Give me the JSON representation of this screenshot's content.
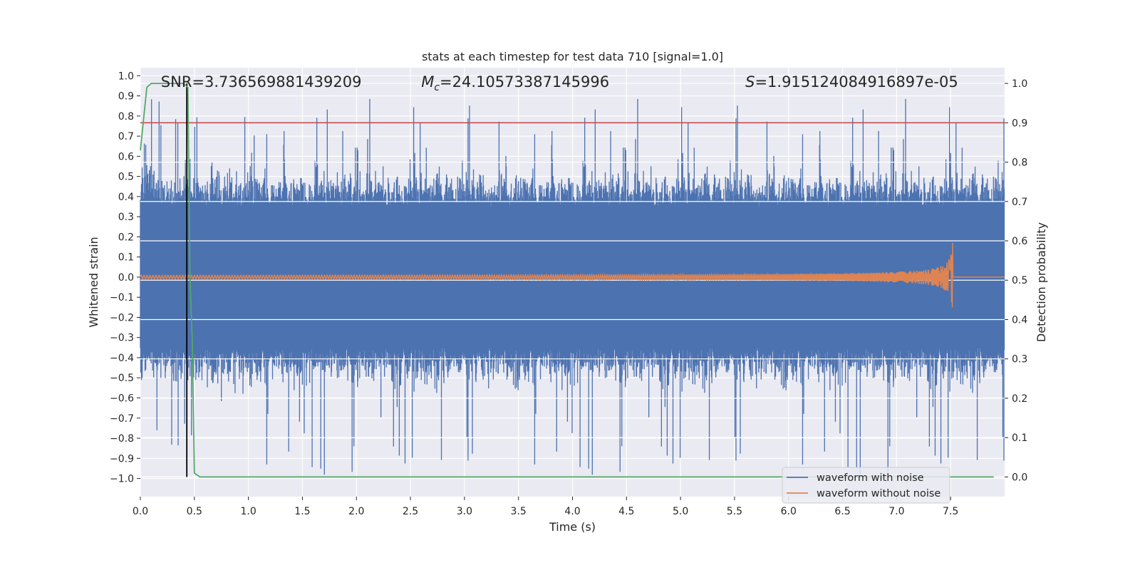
{
  "chart_data": {
    "type": "line",
    "title": "stats at each timestep for test data 710 [signal=1.0]",
    "xlabel": "Time (s)",
    "ylabel_left": "Whitened strain",
    "ylabel_right": "Detection probability",
    "xlim": [
      0.0,
      8.0
    ],
    "ylim_left": [
      -1.09,
      1.04
    ],
    "ylim_right": [
      -0.05,
      1.04
    ],
    "x_ticks": [
      "0.0",
      "0.5",
      "1.0",
      "1.5",
      "2.0",
      "2.5",
      "3.0",
      "3.5",
      "4.0",
      "4.5",
      "5.0",
      "5.5",
      "6.0",
      "6.5",
      "7.0",
      "7.5"
    ],
    "y_ticks_left": [
      "1.0",
      "0.9",
      "0.8",
      "0.7",
      "0.6",
      "0.5",
      "0.4",
      "0.3",
      "0.2",
      "0.1",
      "0.0",
      "−0.1",
      "−0.2",
      "−0.3",
      "−0.4",
      "−0.5",
      "−0.6",
      "−0.7",
      "−0.8",
      "−0.9",
      "−1.0"
    ],
    "y_ticks_right": [
      "1.0",
      "0.9",
      "0.8",
      "0.7",
      "0.6",
      "0.5",
      "0.4",
      "0.3",
      "0.2",
      "0.1",
      "0.0"
    ],
    "annotations": {
      "snr": "SNR=3.736569881439209",
      "mc_symbol": "M",
      "mc_sub": "c",
      "mc_value": "=24.10573387145996",
      "s_symbol": "S",
      "s_value": "=1.915124084916897e-05"
    },
    "threshold": 0.9,
    "marker_time": 0.43,
    "noisy_envelope": {
      "typical_abs": 0.35,
      "peak_max": 0.92,
      "peak_min": -1.0,
      "t_end": 8.0
    },
    "chirp": {
      "t_merge": 7.52,
      "amplitude_max": 0.2
    },
    "series": [
      {
        "name": "waveform with noise",
        "color": "#4c72b0",
        "axis": "left"
      },
      {
        "name": "waveform without noise",
        "color": "#dd8452",
        "axis": "left"
      },
      {
        "name": "detection probability",
        "color": "#55a868",
        "axis": "right",
        "x": [
          0.0,
          0.06,
          0.1,
          0.2,
          0.3,
          0.4,
          0.44,
          0.46,
          0.48,
          0.5,
          0.55,
          1.0,
          2.0,
          3.0,
          4.0,
          5.0,
          6.0,
          7.0,
          7.9
        ],
        "y": [
          0.83,
          0.99,
          1.0,
          1.0,
          1.0,
          1.0,
          0.99,
          0.5,
          0.35,
          0.01,
          0.0,
          0.0,
          0.0,
          0.0,
          0.0,
          0.0,
          0.0,
          0.0,
          0.0
        ]
      }
    ],
    "legend": {
      "position": "lower-right",
      "entries": [
        {
          "label": "waveform with noise",
          "color": "#4c72b0"
        },
        {
          "label": "waveform without noise",
          "color": "#dd8452"
        }
      ]
    },
    "colors": {
      "background": "#eaeaf2",
      "grid": "#ffffff",
      "threshold": "#c44e52",
      "marker": "#000000"
    }
  }
}
